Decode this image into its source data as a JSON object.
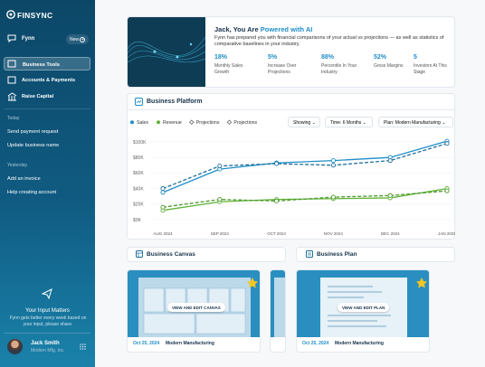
{
  "sidebar": {
    "logo": "FINSYNC",
    "assistant": "Fynn",
    "new_button": "New",
    "nav": [
      "Business Tools",
      "Accounts & Payments",
      "Raise Capital"
    ],
    "history": [
      {
        "label": "Today",
        "items": [
          "Send payment request",
          "Update business name"
        ]
      },
      {
        "label": "Yesterday",
        "items": [
          "Add an invoice",
          "Help creating account"
        ]
      }
    ],
    "feedback": {
      "title": "Your Input Matters",
      "text": "Fynn gets better every week based on your input, please share."
    },
    "user": {
      "name": "Jack Smith",
      "company": "Modern Mfg, Inc."
    }
  },
  "hero": {
    "title_prefix": "Jack, You Are ",
    "title_highlight": "Powered with AI",
    "description": "Fynn has prepared you with financial comparisons of your actual vs projections — as well as statistics of comparative baselines in your industry.",
    "stats": [
      {
        "value": "18%",
        "label": "Monthly Sales Growth"
      },
      {
        "value": "5%",
        "label": "Increase Over Projections"
      },
      {
        "value": "88%",
        "label": "Percentile In Your Industry"
      },
      {
        "value": "52%",
        "label": "Gross Margins"
      },
      {
        "value": "5",
        "label": "Investors At This Stage"
      }
    ]
  },
  "platform": {
    "title": "Business Platform",
    "filters": [
      "Showing",
      "Time: 6 Months",
      "Plan: Modern Manufacturing"
    ]
  },
  "chart_data": {
    "type": "line",
    "categories": [
      "AUG 2024",
      "SEP 2024",
      "OCT 2024",
      "NOV 2024",
      "DEC 2024",
      "JAN 2025"
    ],
    "series": [
      {
        "name": "Sales",
        "color": "#1f8ec9",
        "dashed": false,
        "values": [
          35,
          65,
          73,
          76,
          80,
          101
        ]
      },
      {
        "name": "Revenue",
        "color": "#62b33a",
        "dashed": false,
        "values": [
          12,
          23,
          26,
          27,
          28,
          40
        ]
      },
      {
        "name": "Projections",
        "color": "#1f6f9c",
        "dashed": true,
        "values": [
          40,
          69,
          72,
          70,
          76,
          98
        ]
      },
      {
        "name": "Projections",
        "color": "#4c9a2b",
        "dashed": true,
        "values": [
          16,
          26,
          24,
          29,
          31,
          37
        ]
      }
    ],
    "ylim": [
      0,
      100
    ],
    "yticks": [
      {
        "value": 0,
        "label": "$0K"
      },
      {
        "value": 20,
        "label": "$20K"
      },
      {
        "value": 40,
        "label": "$40K"
      },
      {
        "value": 60,
        "label": "$60K"
      },
      {
        "value": 80,
        "label": "$80K"
      },
      {
        "value": 100,
        "label": "$100K"
      }
    ],
    "grid": true
  },
  "canvas": {
    "title": "Business Canvas",
    "action": "VIEW AND EDIT CANVAS",
    "date": "Oct 25, 2024",
    "plan": "Modern Manufacturing"
  },
  "plan": {
    "title": "Business Plan",
    "action": "VIEW AND EDIT PLAN",
    "date": "Oct 25, 2024",
    "plan": "Modern Manufacturing"
  }
}
